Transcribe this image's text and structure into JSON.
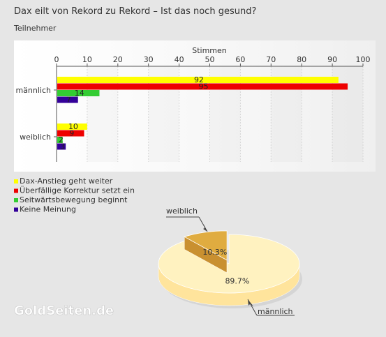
{
  "title": "Dax eilt von Rekord zu Rekord – Ist das noch gesund?",
  "subtitle": "Teilnehmer",
  "watermark": "GoldSeiten.de",
  "colors": {
    "background": "#e6e6e6",
    "plot": "#ffffff",
    "grid": "#d0d0d0"
  },
  "chart_data": [
    {
      "type": "bar",
      "orientation": "horizontal",
      "xlabel": "Stimmen",
      "xlim": [
        0,
        100
      ],
      "xticks": [
        0,
        10,
        20,
        30,
        40,
        50,
        60,
        70,
        80,
        90,
        100
      ],
      "categories": [
        "männlich",
        "weiblich"
      ],
      "series": [
        {
          "name": "Dax-Anstieg geht weiter",
          "color": "#ffff00",
          "values": [
            92,
            10
          ]
        },
        {
          "name": "Überfällige Korrektur setzt ein",
          "color": "#ee0000",
          "values": [
            95,
            9
          ]
        },
        {
          "name": "Seitwärtsbewegung beginnt",
          "color": "#33cc33",
          "values": [
            14,
            2
          ]
        },
        {
          "name": "Keine Meinung",
          "color": "#330099",
          "values": [
            7,
            3
          ]
        }
      ],
      "legend_position": "bottom-left",
      "grid": true
    },
    {
      "type": "pie",
      "style": "3d",
      "slices": [
        {
          "label": "männlich",
          "value": 89.7,
          "display": "89.7%",
          "color": "#fff2c0",
          "side": "#ffe49c"
        },
        {
          "label": "weiblich",
          "value": 10.3,
          "display": "10.3%",
          "color": "#e0ac40",
          "side": "#b98320"
        }
      ]
    }
  ]
}
